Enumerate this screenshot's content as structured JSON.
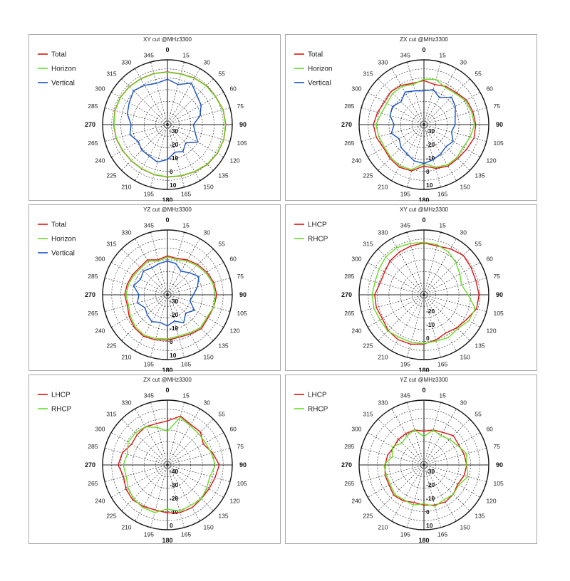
{
  "chart_data": [
    {
      "type": "radar",
      "title": "XY cut @MHz3300",
      "angle_labels": [
        "0",
        "15",
        "30",
        "55",
        "60",
        "75",
        "90",
        "105",
        "120",
        "135",
        "150",
        "165",
        "180",
        "195",
        "210",
        "225",
        "240",
        "265",
        "270",
        "285",
        "300",
        "315",
        "330",
        "345"
      ],
      "ring_labels": [
        "-30",
        "-20",
        "-10",
        "0",
        "10"
      ],
      "colors": {
        "Total": "#e01010",
        "Horizon": "#66dd22",
        "Vertical": "#1450c8",
        "LHCP": "#e01010",
        "RHCP": "#66dd22"
      },
      "series": [
        {
          "name": "Total",
          "values": [
            0.7,
            0.5,
            1.5,
            2.5,
            3.0,
            4.5,
            5.0,
            5.0,
            4.5,
            3.5,
            2.0,
            1.0,
            0.5,
            0.0,
            -0.5,
            -0.5,
            0.0,
            1.0,
            1.5,
            2.0,
            2.0,
            1.5,
            1.0,
            0.8
          ]
        },
        {
          "name": "Horizon",
          "values": [
            0.5,
            0.3,
            1.3,
            2.3,
            2.8,
            4.3,
            4.8,
            4.8,
            4.3,
            3.3,
            1.8,
            0.8,
            0.3,
            -0.2,
            -0.7,
            -0.7,
            -0.2,
            0.8,
            1.3,
            1.8,
            1.8,
            1.3,
            0.8,
            0.6
          ]
        },
        {
          "name": "Vertical",
          "values": [
            -5,
            -8,
            -3,
            -8,
            -10,
            -14,
            -20,
            -18,
            -13,
            -20,
            -16,
            -18,
            -13,
            -10,
            -12,
            -12,
            -14,
            -10,
            -12,
            -8,
            -6,
            -3,
            -5,
            -7
          ]
        }
      ]
    },
    {
      "type": "radar",
      "title": "ZX cut @MHz3300",
      "angle_labels": [
        "0",
        "15",
        "30",
        "55",
        "60",
        "75",
        "90",
        "105",
        "120",
        "135",
        "150",
        "165",
        "180",
        "195",
        "210",
        "225",
        "240",
        "265",
        "270",
        "285",
        "300",
        "315",
        "330",
        "345"
      ],
      "ring_labels": [
        "-30",
        "-20",
        "-10",
        "0",
        "10"
      ],
      "colors": {
        "Total": "#e01010",
        "Horizon": "#66dd22",
        "Vertical": "#1450c8",
        "LHCP": "#e01010",
        "RHCP": "#66dd22"
      },
      "series": [
        {
          "name": "Total",
          "values": [
            -6,
            -8,
            -6,
            -5,
            -2,
            -1,
            0,
            0,
            -2,
            -3,
            -3,
            -5,
            -8,
            -3,
            -2,
            -3,
            -4,
            -2,
            -1,
            -3,
            -5,
            -4,
            -5,
            -7
          ]
        },
        {
          "name": "Horizon",
          "values": [
            -5,
            -4,
            -7,
            -6,
            -3,
            -2,
            -1,
            -3,
            -5,
            -4,
            -4,
            -6,
            -10,
            -4,
            -3,
            -4,
            -5,
            -4,
            -3,
            -6,
            -7,
            -6,
            -6,
            -8
          ]
        },
        {
          "name": "Vertical",
          "values": [
            -14,
            -12,
            -16,
            -10,
            -12,
            -15,
            -16,
            -18,
            -14,
            -16,
            -14,
            -12,
            -10,
            -11,
            -14,
            -15,
            -18,
            -14,
            -17,
            -13,
            -12,
            -15,
            -11,
            -13
          ]
        }
      ]
    },
    {
      "type": "radar",
      "title": "YZ cut @MHz3300",
      "angle_labels": [
        "0",
        "15",
        "30",
        "55",
        "60",
        "75",
        "90",
        "105",
        "120",
        "135",
        "150",
        "165",
        "180",
        "195",
        "210",
        "225",
        "240",
        "265",
        "270",
        "285",
        "300",
        "315",
        "330",
        "345"
      ],
      "ring_labels": [
        "-30",
        "-20",
        "-10",
        "0",
        "10"
      ],
      "colors": {
        "Total": "#e01010",
        "Horizon": "#66dd22",
        "Vertical": "#1450c8",
        "LHCP": "#e01010",
        "RHCP": "#66dd22"
      },
      "series": [
        {
          "name": "Total",
          "values": [
            -10,
            -11,
            -9,
            -7,
            -5,
            -3,
            -2,
            -3,
            -4,
            -3,
            -5,
            -6,
            -5,
            -4,
            -3,
            -4,
            -6,
            -8,
            -7,
            -8,
            -9,
            -10,
            -9,
            -12
          ]
        },
        {
          "name": "Horizon",
          "values": [
            -11,
            -12,
            -10,
            -8,
            -6,
            -4,
            -3,
            -3,
            -5,
            -4,
            -6,
            -7,
            -6,
            -5,
            -4,
            -5,
            -7,
            -9,
            -8,
            -9,
            -10,
            -11,
            -10,
            -13
          ]
        },
        {
          "name": "Vertical",
          "values": [
            -14,
            -15,
            -19,
            -16,
            -12,
            -16,
            -20,
            -22,
            -16,
            -20,
            -15,
            -19,
            -16,
            -18,
            -16,
            -18,
            -20,
            -16,
            -18,
            -13,
            -16,
            -14,
            -16,
            -15
          ]
        }
      ]
    },
    {
      "type": "radar",
      "title": "XY cut @MHz3300",
      "angle_labels": [
        "0",
        "15",
        "30",
        "55",
        "60",
        "75",
        "90",
        "105",
        "120",
        "135",
        "150",
        "165",
        "180",
        "195",
        "210",
        "225",
        "240",
        "265",
        "270",
        "285",
        "300",
        "315",
        "330",
        "345"
      ],
      "ring_labels": [
        "-20",
        "-10",
        "0"
      ],
      "colors": {
        "Total": "#e01010",
        "Horizon": "#66dd22",
        "Vertical": "#1450c8",
        "LHCP": "#e01010",
        "RHCP": "#66dd22"
      },
      "series": [
        {
          "name": "LHCP",
          "values": [
            0.0,
            -1.0,
            1.0,
            3.0,
            2.0,
            1.5,
            2.5,
            2.0,
            -2.0,
            -4.0,
            -6.0,
            -4.0,
            -2.0,
            -0.5,
            0.0,
            -1.0,
            -3.0,
            -2.0,
            -2.0,
            -5.0,
            -5.0,
            -3.0,
            -2.0,
            -1.0
          ]
        },
        {
          "name": "RHCP",
          "values": [
            0.5,
            0.0,
            -2.0,
            -5.0,
            -8.0,
            -10.0,
            -6.0,
            1.0,
            0.0,
            -3.0,
            -2.0,
            -3.0,
            -2.5,
            -2.0,
            -2.0,
            -0.5,
            -1.0,
            0.0,
            0.0,
            -1.0,
            0.0,
            1.5,
            2.0,
            1.0
          ]
        }
      ]
    },
    {
      "type": "radar",
      "title": "ZX cut @MHz3300",
      "angle_labels": [
        "0",
        "15",
        "30",
        "55",
        "60",
        "75",
        "90",
        "105",
        "120",
        "135",
        "150",
        "165",
        "180",
        "195",
        "210",
        "225",
        "240",
        "265",
        "270",
        "285",
        "300",
        "315",
        "330",
        "345"
      ],
      "ring_labels": [
        "-40",
        "-30",
        "-20",
        "-10",
        "0"
      ],
      "colors": {
        "Total": "#e01010",
        "Horizon": "#66dd22",
        "Vertical": "#1450c8",
        "LHCP": "#e01010",
        "RHCP": "#66dd22"
      },
      "series": [
        {
          "name": "LHCP",
          "values": [
            -6,
            -1,
            -4,
            -4,
            -8,
            -4,
            0,
            -2,
            -3,
            -3,
            -2,
            -2,
            -3,
            -4,
            -3,
            -2,
            -3,
            -5,
            -2,
            -4,
            -8,
            -7,
            -6,
            -7
          ]
        },
        {
          "name": "RHCP",
          "values": [
            -14,
            -2,
            -5,
            -6,
            -6,
            -5,
            -3,
            -6,
            -5,
            -3,
            -4,
            -3,
            -6,
            -2,
            -2,
            -3,
            -5,
            -7,
            -6,
            -8,
            -5,
            -5,
            -6,
            -10
          ]
        }
      ]
    },
    {
      "type": "radar",
      "title": "YZ cut @MHz3300",
      "angle_labels": [
        "0",
        "15",
        "30",
        "55",
        "60",
        "75",
        "90",
        "105",
        "120",
        "135",
        "150",
        "165",
        "180",
        "195",
        "210",
        "225",
        "240",
        "265",
        "270",
        "285",
        "300",
        "315",
        "330",
        "345"
      ],
      "ring_labels": [
        "-30",
        "-20",
        "-10",
        "0",
        "10"
      ],
      "colors": {
        "Total": "#e01010",
        "Horizon": "#66dd22",
        "Vertical": "#1450c8",
        "LHCP": "#e01010",
        "RHCP": "#66dd22"
      },
      "series": [
        {
          "name": "LHCP",
          "values": [
            -14,
            -12,
            -11,
            -8,
            -9,
            -8,
            -7,
            -8,
            -10,
            -8,
            -7,
            -8,
            -9,
            -10,
            -8,
            -7,
            -9,
            -9,
            -10,
            -11,
            -13,
            -12,
            -12,
            -12
          ]
        },
        {
          "name": "RHCP",
          "values": [
            -18,
            -12,
            -14,
            -12,
            -10,
            -6,
            -7,
            -5,
            -9,
            -8,
            -9,
            -7,
            -10,
            -8,
            -9,
            -8,
            -10,
            -10,
            -9,
            -15,
            -12,
            -16,
            -14,
            -12
          ]
        }
      ]
    }
  ]
}
